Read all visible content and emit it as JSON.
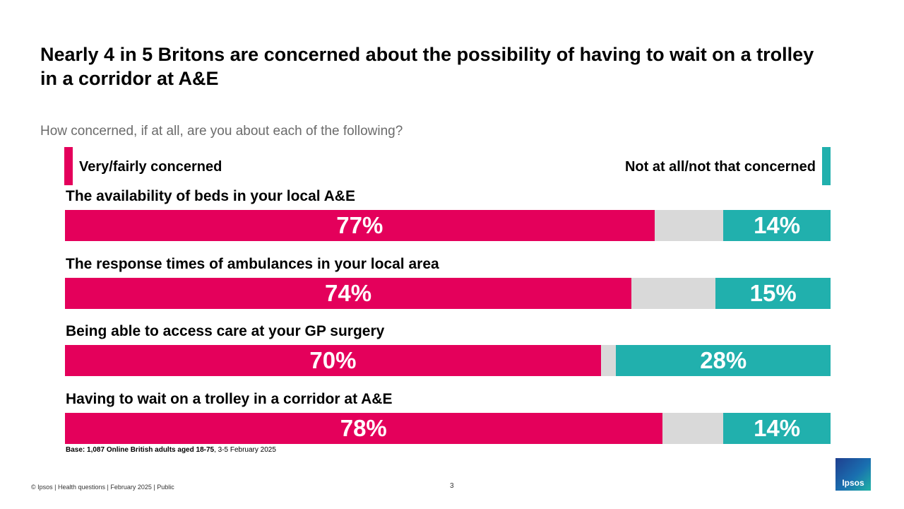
{
  "header": {
    "title": "Nearly 4 in 5 Britons are concerned about the possibility of having to wait on a trolley in a corridor at A&E",
    "subtitle": "How concerned, if at all, are you about each of the following?"
  },
  "legend": {
    "positive_label": "Very/fairly concerned",
    "negative_label": "Not at all/not that concerned"
  },
  "colors": {
    "positive": "#e4005b",
    "middle": "#d9d9d9",
    "negative": "#21b0ad"
  },
  "chart_data": {
    "type": "bar",
    "orientation": "horizontal",
    "stacked": true,
    "unit": "%",
    "categories": [
      "The availability of beds in your local A&E",
      "The response times of ambulances in your local area",
      "Being able to access care at your GP surgery",
      "Having to wait on a trolley in a corridor at A&E"
    ],
    "series": [
      {
        "name": "Very/fairly concerned",
        "values": [
          77,
          74,
          70,
          78
        ]
      },
      {
        "name": "",
        "values": [
          9,
          11,
          2,
          8
        ]
      },
      {
        "name": "Not at all/not that concerned",
        "values": [
          14,
          15,
          28,
          14
        ]
      }
    ],
    "value_labels": {
      "positive": [
        "77%",
        "74%",
        "70%",
        "78%"
      ],
      "negative": [
        "14%",
        "15%",
        "28%",
        "14%"
      ]
    },
    "xlim": [
      0,
      100
    ]
  },
  "notes": {
    "base_bold": "Base: 1,087 Online British adults aged 18-75",
    "base_rest": ", 3-5 February 2025"
  },
  "footer": {
    "text": "© Ipsos | Health questions | February 2025 | Public",
    "page_number": "3",
    "logo_text": "Ipsos"
  }
}
